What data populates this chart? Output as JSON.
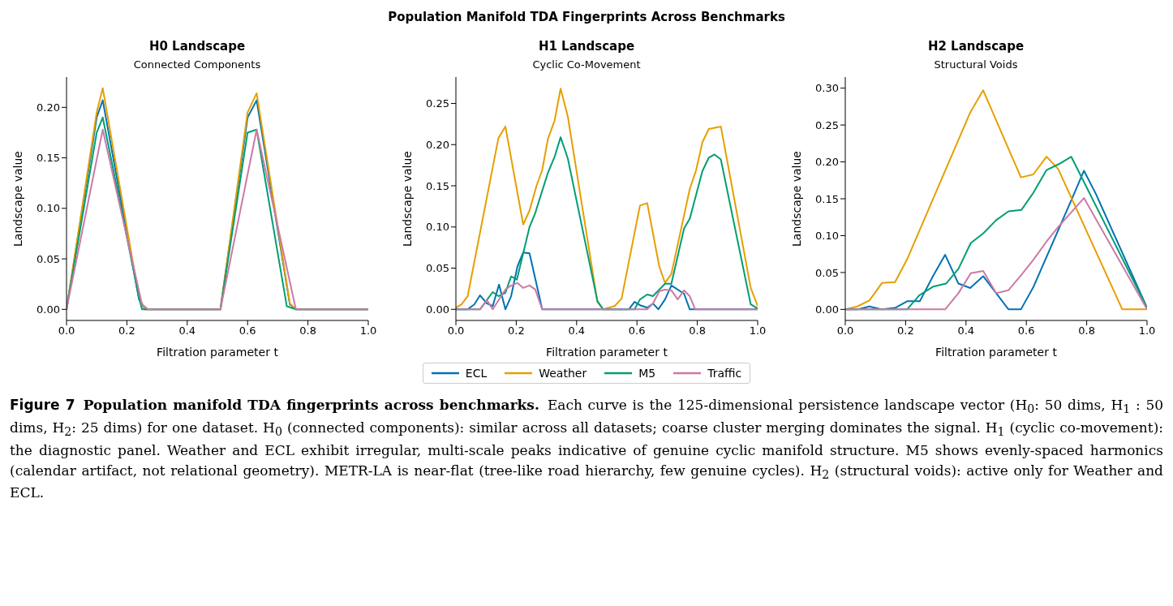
{
  "chart_data": [
    {
      "type": "other",
      "title": "Population Manifold TDA Fingerprints Across Benchmarks",
      "annotations": [
        "Figure 7",
        "Population manifold TDA fingerprints across benchmarks.",
        "Each curve is the 125-dimensional persistence landscape vector (H$_{0}$: 50 dims, H$_{1}$ : 50 dims, H$_{2}$: 25 dims) for one dataset. H$_{0}$ (connected components): similar across all datasets; coarse cluster merging dominates the signal. H$_{1}$ (cyclic co-movement): the diagnostic panel. Weather and ECL exhibit irregular, multi-scale peaks indicative of genuine cyclic manifold structure. M5 shows evenly-spaced harmonics (calendar artifact, not relational geometry). METR-LA is near-flat (tree-like road hierarchy, few genuine cycles). H$_{2}$ (structural voids): active only for Weather and ECL."
      ]
    },
    {
      "type": "line",
      "title": "H0 Landscape",
      "subtitle": "Connected Components",
      "xlabel": "Filtration parameter t",
      "ylabel": "Landscape value",
      "xlim": [
        0,
        1
      ],
      "ylim": [
        -0.011,
        0.23
      ],
      "xticks": [
        {
          "value": 0,
          "label": "0.0"
        },
        {
          "value": 0.2,
          "label": "0.2"
        },
        {
          "value": 0.4,
          "label": "0.4"
        },
        {
          "value": 0.6,
          "label": "0.6"
        },
        {
          "value": 0.8,
          "label": "0.8"
        },
        {
          "value": 1,
          "label": "1.0"
        }
      ],
      "yticks": [
        {
          "value": 0,
          "label": "0.00"
        },
        {
          "value": 0.05,
          "label": "0.05"
        },
        {
          "value": 0.1,
          "label": "0.10"
        },
        {
          "value": 0.15,
          "label": "0.15"
        },
        {
          "value": 0.2,
          "label": "0.20"
        }
      ],
      "series": [
        {
          "color": "#0072b2",
          "x": [
            0,
            0.1,
            0.12,
            0.24,
            0.26,
            0.51,
            0.6,
            0.63,
            0.74,
            0.76,
            1
          ],
          "values": [
            0,
            0.19,
            0.207,
            0.01,
            0,
            0,
            0.19,
            0.207,
            0.005,
            0,
            0
          ]
        },
        {
          "color": "#e69f00",
          "x": [
            0,
            0.1,
            0.12,
            0.24,
            0.26,
            0.51,
            0.6,
            0.63,
            0.74,
            0.76,
            1
          ],
          "values": [
            0,
            0.195,
            0.219,
            0.012,
            0,
            0,
            0.195,
            0.214,
            0.006,
            0,
            0
          ]
        },
        {
          "color": "#009e73",
          "x": [
            0,
            0.1,
            0.12,
            0.24,
            0.25,
            0.51,
            0.6,
            0.63,
            0.73,
            0.76,
            1
          ],
          "values": [
            0,
            0.175,
            0.19,
            0.012,
            0,
            0,
            0.175,
            0.178,
            0.003,
            0,
            0
          ]
        },
        {
          "color": "#cc79a7",
          "x": [
            0,
            0.12,
            0.25,
            0.27,
            0.51,
            0.63,
            0.76,
            1
          ],
          "values": [
            0,
            0.178,
            0.005,
            0,
            0,
            0.178,
            0,
            0
          ]
        }
      ]
    },
    {
      "type": "line",
      "title": "H1 Landscape",
      "subtitle": "Cyclic Co-Movement",
      "xlabel": "Filtration parameter t",
      "ylabel": "Landscape value",
      "xlim": [
        0,
        1
      ],
      "ylim": [
        -0.0135,
        0.282
      ],
      "legend": "bottom",
      "xticks": [
        {
          "value": 0,
          "label": "0.0"
        },
        {
          "value": 0.2,
          "label": "0.2"
        },
        {
          "value": 0.4,
          "label": "0.4"
        },
        {
          "value": 0.6,
          "label": "0.6"
        },
        {
          "value": 0.8,
          "label": "0.8"
        },
        {
          "value": 1,
          "label": "1.0"
        }
      ],
      "yticks": [
        {
          "value": 0,
          "label": "0.00"
        },
        {
          "value": 0.05,
          "label": "0.05"
        },
        {
          "value": 0.1,
          "label": "0.10"
        },
        {
          "value": 0.15,
          "label": "0.15"
        },
        {
          "value": 0.2,
          "label": "0.20"
        },
        {
          "value": 0.25,
          "label": "0.25"
        }
      ],
      "series": [
        {
          "name": "ECL",
          "color": "#0072b2",
          "x": [
            0,
            0.039,
            0.061,
            0.08,
            0.103,
            0.122,
            0.143,
            0.164,
            0.183,
            0.204,
            0.223,
            0.244,
            0.286,
            0.573,
            0.592,
            0.61,
            0.634,
            0.653,
            0.671,
            0.693,
            0.714,
            0.756,
            0.775,
            1
          ],
          "values": [
            0,
            0,
            0.006,
            0.017,
            0.007,
            0.004,
            0.03,
            0,
            0.016,
            0.052,
            0.069,
            0.068,
            0,
            0,
            0.009,
            0.005,
            0.002,
            0.007,
            0,
            0.012,
            0.029,
            0.019,
            0,
            0
          ]
        },
        {
          "name": "Weather",
          "color": "#e69f00",
          "x": [
            0,
            0.019,
            0.039,
            0.141,
            0.164,
            0.223,
            0.244,
            0.268,
            0.286,
            0.305,
            0.327,
            0.347,
            0.371,
            0.469,
            0.488,
            0.526,
            0.549,
            0.61,
            0.634,
            0.674,
            0.693,
            0.714,
            0.775,
            0.796,
            0.817,
            0.838,
            0.878,
            0.977,
            1
          ],
          "values": [
            0.002,
            0.006,
            0.016,
            0.208,
            0.222,
            0.103,
            0.12,
            0.151,
            0.169,
            0.207,
            0.229,
            0.268,
            0.234,
            0.009,
            0,
            0.004,
            0.013,
            0.126,
            0.129,
            0.052,
            0.032,
            0.043,
            0.146,
            0.169,
            0.203,
            0.219,
            0.222,
            0.026,
            0.004
          ]
        },
        {
          "name": "M5",
          "color": "#009e73",
          "x": [
            0,
            0.08,
            0.122,
            0.141,
            0.164,
            0.183,
            0.202,
            0.244,
            0.263,
            0.305,
            0.327,
            0.347,
            0.371,
            0.469,
            0.488,
            0.592,
            0.61,
            0.634,
            0.653,
            0.693,
            0.714,
            0.756,
            0.775,
            0.817,
            0.838,
            0.857,
            0.878,
            0.977,
            1
          ],
          "values": [
            0,
            0,
            0.021,
            0.016,
            0.02,
            0.04,
            0.036,
            0.1,
            0.117,
            0.166,
            0.185,
            0.209,
            0.183,
            0.01,
            0,
            0,
            0.012,
            0.018,
            0.016,
            0.031,
            0.031,
            0.098,
            0.11,
            0.168,
            0.184,
            0.188,
            0.182,
            0.006,
            0.001
          ]
        },
        {
          "name": "Traffic",
          "color": "#cc79a7",
          "x": [
            0,
            0.08,
            0.103,
            0.122,
            0.164,
            0.183,
            0.204,
            0.223,
            0.244,
            0.263,
            0.286,
            0.634,
            0.653,
            0.674,
            0.693,
            0.714,
            0.735,
            0.756,
            0.775,
            0.793,
            1
          ],
          "values": [
            0,
            0,
            0.011,
            0,
            0.024,
            0.029,
            0.032,
            0.026,
            0.029,
            0.024,
            0,
            0,
            0.007,
            0.022,
            0.024,
            0.023,
            0.012,
            0.023,
            0.016,
            0,
            0
          ]
        }
      ]
    },
    {
      "type": "line",
      "title": "H2 Landscape",
      "subtitle": "Structural Voids",
      "xlabel": "Filtration parameter t",
      "ylabel": "Landscape value",
      "xlim": [
        0,
        1
      ],
      "ylim": [
        -0.015,
        0.315
      ],
      "xticks": [
        {
          "value": 0,
          "label": "0.0"
        },
        {
          "value": 0.2,
          "label": "0.2"
        },
        {
          "value": 0.4,
          "label": "0.4"
        },
        {
          "value": 0.6,
          "label": "0.6"
        },
        {
          "value": 0.8,
          "label": "0.8"
        },
        {
          "value": 1,
          "label": "1.0"
        }
      ],
      "yticks": [
        {
          "value": 0,
          "label": "0.00"
        },
        {
          "value": 0.05,
          "label": "0.05"
        },
        {
          "value": 0.1,
          "label": "0.10"
        },
        {
          "value": 0.15,
          "label": "0.15"
        },
        {
          "value": 0.2,
          "label": "0.20"
        },
        {
          "value": 0.25,
          "label": "0.25"
        },
        {
          "value": 0.3,
          "label": "0.30"
        }
      ],
      "series": [
        {
          "color": "#0072b2",
          "x": [
            0,
            0.04,
            0.08,
            0.122,
            0.165,
            0.205,
            0.247,
            0.292,
            0.331,
            0.375,
            0.414,
            0.457,
            0.541,
            0.582,
            0.623,
            0.749,
            0.791,
            0.83,
            1
          ],
          "values": [
            0,
            0,
            0.004,
            0,
            0.002,
            0.011,
            0.011,
            0.046,
            0.074,
            0.035,
            0.029,
            0.045,
            0,
            0,
            0.03,
            0.148,
            0.188,
            0.157,
            0.002
          ]
        },
        {
          "color": "#e69f00",
          "x": [
            0,
            0.04,
            0.08,
            0.122,
            0.165,
            0.205,
            0.414,
            0.457,
            0.582,
            0.623,
            0.667,
            0.706,
            0.918,
            1
          ],
          "values": [
            0,
            0.004,
            0.012,
            0.036,
            0.037,
            0.068,
            0.267,
            0.297,
            0.179,
            0.183,
            0.207,
            0.19,
            0,
            0
          ]
        },
        {
          "color": "#009e73",
          "x": [
            0,
            0.205,
            0.245,
            0.292,
            0.334,
            0.375,
            0.416,
            0.457,
            0.5,
            0.541,
            0.584,
            0.623,
            0.667,
            0.708,
            0.749,
            1
          ],
          "values": [
            0,
            0,
            0.019,
            0.031,
            0.035,
            0.055,
            0.09,
            0.103,
            0.121,
            0.133,
            0.135,
            0.158,
            0.189,
            0.197,
            0.207,
            0.002
          ]
        },
        {
          "color": "#cc79a7",
          "x": [
            0,
            0.331,
            0.375,
            0.416,
            0.457,
            0.5,
            0.541,
            0.584,
            0.623,
            0.667,
            0.706,
            0.791,
            1
          ],
          "values": [
            0,
            0,
            0.022,
            0.049,
            0.052,
            0.022,
            0.026,
            0.047,
            0.067,
            0.092,
            0.112,
            0.151,
            0
          ]
        }
      ]
    }
  ]
}
